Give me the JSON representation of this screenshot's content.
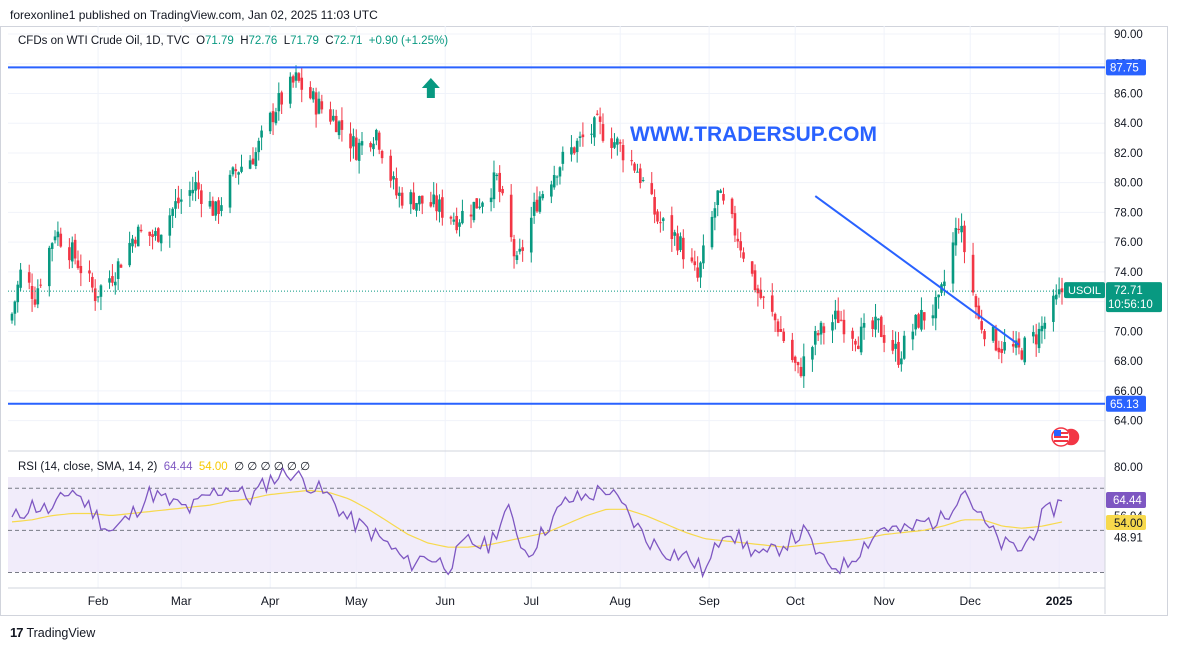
{
  "header": {
    "publish_line": "forexonline1 published on TradingView.com, Jan 02, 2025 11:03 UTC"
  },
  "legend": {
    "symbol": "CFDs on WTI Crude Oil, 1D, TVC",
    "open_label": "O",
    "open": "71.79",
    "high_label": "H",
    "high": "72.76",
    "low_label": "L",
    "low": "71.79",
    "close_label": "C",
    "close": "72.71",
    "change": "+0.90 (+1.25%)"
  },
  "watermark": "WWW.TRADERSUP.COM",
  "price_tag": {
    "symbol": "USOIL",
    "price": "72.71",
    "countdown": "10:56:10"
  },
  "rsi_legend": {
    "label": "RSI (14, close, SMA, 14, 2)",
    "rsi_value": "64.44",
    "sma_value": "54.00",
    "placeholders": "∅ ∅ ∅ ∅ ∅ ∅"
  },
  "footer": {
    "brand": "TradingView"
  },
  "colors": {
    "up": "#089981",
    "down": "#f23645",
    "level_line": "#2962ff",
    "trend_line": "#2962ff",
    "rsi": "#7e57c2",
    "rsi_sma": "#f7d94c",
    "watermark": "#2962ff",
    "arrow": "#089981"
  },
  "icons": {
    "arrow": "arrow-up-icon",
    "flag": "us-flag-icon",
    "logo": "tradingview-logo-icon"
  },
  "chart_data": [
    {
      "type": "candlestick",
      "title": "CFDs on WTI Crude Oil, 1D, TVC",
      "x_tick_labels": [
        "Feb",
        "Mar",
        "Apr",
        "May",
        "Jun",
        "Jul",
        "Aug",
        "Sep",
        "Oct",
        "Nov",
        "Dec",
        "2025"
      ],
      "y_tick_labels": [
        "64.00",
        "66.00",
        "68.00",
        "70.00",
        "72.00",
        "74.00",
        "76.00",
        "78.00",
        "80.00",
        "82.00",
        "84.00",
        "86.00",
        "88.00",
        "90.00"
      ],
      "ylim": [
        63.1,
        90.2
      ],
      "current_price": 72.71,
      "horizontal_levels": [
        {
          "value": 87.75,
          "label": "87.75"
        },
        {
          "value": 65.13,
          "label": "65.13"
        }
      ],
      "trend_line": {
        "from": {
          "date": "2024-10-08",
          "value": 79.1
        },
        "to": {
          "date": "2024-12-18",
          "value": 69.1
        }
      },
      "annotations": [
        {
          "type": "arrow-up",
          "date": "2024-05-27",
          "value": 86.5
        }
      ],
      "closes_sampled": [
        {
          "date": "2024-01-02",
          "value": 71.2
        },
        {
          "date": "2024-01-05",
          "value": 73.9
        },
        {
          "date": "2024-01-10",
          "value": 72.4
        },
        {
          "date": "2024-01-17",
          "value": 76.8
        },
        {
          "date": "2024-01-24",
          "value": 75.0
        },
        {
          "date": "2024-01-31",
          "value": 72.5
        },
        {
          "date": "2024-02-07",
          "value": 74.1
        },
        {
          "date": "2024-02-14",
          "value": 76.6
        },
        {
          "date": "2024-02-21",
          "value": 76.4
        },
        {
          "date": "2024-02-28",
          "value": 78.5
        },
        {
          "date": "2024-03-06",
          "value": 79.8
        },
        {
          "date": "2024-03-13",
          "value": 78.0
        },
        {
          "date": "2024-03-20",
          "value": 80.8
        },
        {
          "date": "2024-03-27",
          "value": 82.0
        },
        {
          "date": "2024-04-03",
          "value": 85.1
        },
        {
          "date": "2024-04-10",
          "value": 86.9
        },
        {
          "date": "2024-04-17",
          "value": 85.3
        },
        {
          "date": "2024-04-24",
          "value": 84.2
        },
        {
          "date": "2024-05-01",
          "value": 82.3
        },
        {
          "date": "2024-05-08",
          "value": 83.5
        },
        {
          "date": "2024-05-15",
          "value": 79.2
        },
        {
          "date": "2024-05-22",
          "value": 78.8
        },
        {
          "date": "2024-05-29",
          "value": 78.4
        },
        {
          "date": "2024-06-05",
          "value": 77.6
        },
        {
          "date": "2024-06-12",
          "value": 78.6
        },
        {
          "date": "2024-06-19",
          "value": 80.2
        },
        {
          "date": "2024-06-26",
          "value": 74.4
        },
        {
          "date": "2024-07-03",
          "value": 78.8
        },
        {
          "date": "2024-07-10",
          "value": 81.1
        },
        {
          "date": "2024-07-17",
          "value": 82.6
        },
        {
          "date": "2024-07-24",
          "value": 83.8
        },
        {
          "date": "2024-07-31",
          "value": 82.6
        },
        {
          "date": "2024-08-07",
          "value": 80.9
        },
        {
          "date": "2024-08-14",
          "value": 77.5
        },
        {
          "date": "2024-08-21",
          "value": 76.2
        },
        {
          "date": "2024-08-28",
          "value": 73.5
        },
        {
          "date": "2024-09-04",
          "value": 79.1
        },
        {
          "date": "2024-09-11",
          "value": 76.4
        },
        {
          "date": "2024-09-18",
          "value": 72.6
        },
        {
          "date": "2024-09-25",
          "value": 70.4
        },
        {
          "date": "2024-10-02",
          "value": 67.2
        },
        {
          "date": "2024-10-09",
          "value": 69.8
        },
        {
          "date": "2024-10-16",
          "value": 71.0
        },
        {
          "date": "2024-10-23",
          "value": 69.6
        },
        {
          "date": "2024-10-30",
          "value": 70.3
        },
        {
          "date": "2024-11-06",
          "value": 68.4
        },
        {
          "date": "2024-11-13",
          "value": 70.8
        },
        {
          "date": "2024-11-20",
          "value": 71.7
        },
        {
          "date": "2024-11-27",
          "value": 77.4
        },
        {
          "date": "2024-12-04",
          "value": 70.7
        },
        {
          "date": "2024-12-11",
          "value": 69.1
        },
        {
          "date": "2024-12-18",
          "value": 68.6
        },
        {
          "date": "2024-12-25",
          "value": 69.9
        },
        {
          "date": "2025-01-02",
          "value": 72.7
        }
      ]
    },
    {
      "type": "line",
      "title": "RSI (14, close, SMA, 14, 2)",
      "y_tick_labels": [
        "80.00",
        "64.44",
        "56.94",
        "54.00",
        "48.91"
      ],
      "ylim": [
        25,
        82
      ],
      "levels": [
        70,
        50,
        30
      ],
      "series": [
        {
          "name": "RSI",
          "last": 64.44,
          "values": [
            55,
            62,
            59,
            70,
            60,
            49,
            57,
            68,
            63,
            60,
            67,
            71,
            65,
            74,
            78,
            72,
            66,
            55,
            50,
            43,
            34,
            38,
            33,
            45,
            42,
            60,
            38,
            52,
            64,
            66,
            70,
            59,
            46,
            40,
            38,
            30,
            52,
            43,
            37,
            44,
            49,
            34,
            33,
            43,
            52,
            49,
            54,
            55,
            71,
            54,
            43,
            41,
            56,
            64
          ]
        },
        {
          "name": "SMA",
          "last": 54.0,
          "values": [
            54,
            55,
            57,
            58,
            58,
            57,
            58,
            59,
            60,
            61,
            62,
            64,
            65,
            67,
            68,
            69,
            68,
            65,
            60,
            54,
            48,
            44,
            42,
            42,
            43,
            45,
            47,
            49,
            53,
            57,
            60,
            60,
            57,
            53,
            49,
            46,
            45,
            44,
            43,
            42,
            43,
            44,
            45,
            46,
            48,
            49,
            50,
            52,
            55,
            55,
            52,
            51,
            52,
            54
          ]
        }
      ]
    }
  ]
}
